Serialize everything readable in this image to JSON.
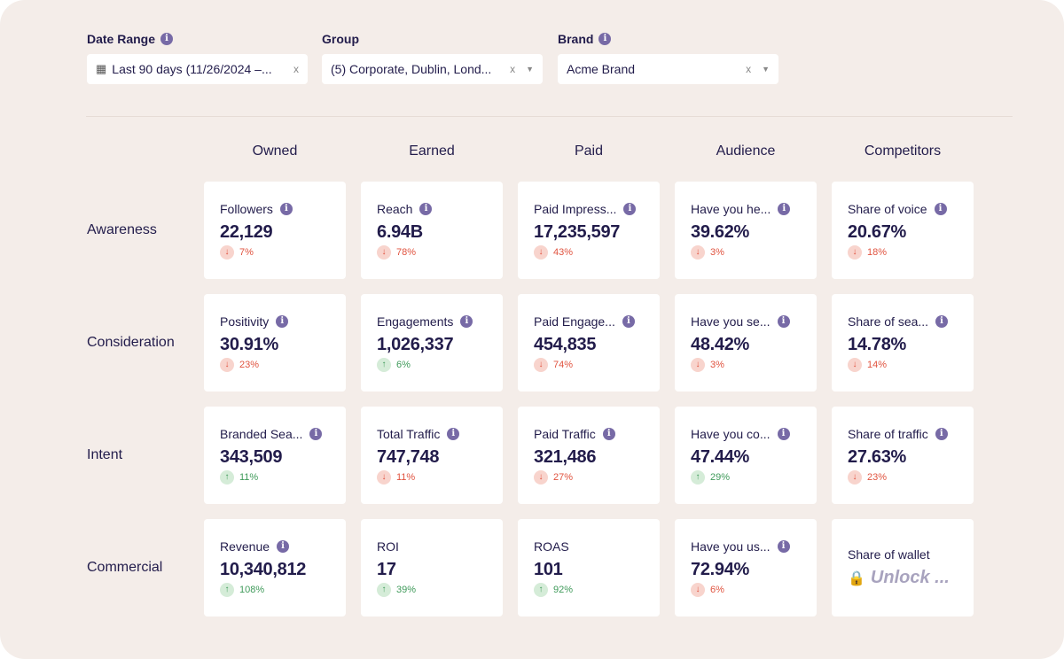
{
  "filters": [
    {
      "label": "Date Range",
      "info": true,
      "value": "Last 90 days (11/26/2024 –...",
      "icon": "calendar-icon",
      "clear": "x",
      "dropdown": false
    },
    {
      "label": "Group",
      "info": false,
      "value": "(5) Corporate, Dublin, Lond...",
      "clear": "x",
      "dropdown": true
    },
    {
      "label": "Brand",
      "info": true,
      "value": "Acme Brand",
      "clear": "x",
      "dropdown": true
    }
  ],
  "columns": [
    "Owned",
    "Earned",
    "Paid",
    "Audience",
    "Competitors"
  ],
  "rows": [
    {
      "label": "Awareness",
      "cards": [
        {
          "title": "Followers",
          "value": "22,129",
          "dir": "down",
          "delta": "7%"
        },
        {
          "title": "Reach",
          "value": "6.94B",
          "dir": "down",
          "delta": "78%"
        },
        {
          "title": "Paid Impress...",
          "value": "17,235,597",
          "dir": "down",
          "delta": "43%"
        },
        {
          "title": "Have you he...",
          "value": "39.62%",
          "dir": "down",
          "delta": "3%"
        },
        {
          "title": "Share of voice",
          "value": "20.67%",
          "dir": "down",
          "delta": "18%"
        }
      ]
    },
    {
      "label": "Consideration",
      "cards": [
        {
          "title": "Positivity",
          "value": "30.91%",
          "dir": "down",
          "delta": "23%"
        },
        {
          "title": "Engagements",
          "value": "1,026,337",
          "dir": "up",
          "delta": "6%"
        },
        {
          "title": "Paid Engage...",
          "value": "454,835",
          "dir": "down",
          "delta": "74%"
        },
        {
          "title": "Have you se...",
          "value": "48.42%",
          "dir": "down",
          "delta": "3%"
        },
        {
          "title": "Share of sea...",
          "value": "14.78%",
          "dir": "down",
          "delta": "14%"
        }
      ]
    },
    {
      "label": "Intent",
      "cards": [
        {
          "title": "Branded Sea...",
          "value": "343,509",
          "dir": "up",
          "delta": "11%"
        },
        {
          "title": "Total Traffic",
          "value": "747,748",
          "dir": "down",
          "delta": "11%"
        },
        {
          "title": "Paid Traffic",
          "value": "321,486",
          "dir": "down",
          "delta": "27%"
        },
        {
          "title": "Have you co...",
          "value": "47.44%",
          "dir": "up",
          "delta": "29%"
        },
        {
          "title": "Share of traffic",
          "value": "27.63%",
          "dir": "down",
          "delta": "23%"
        }
      ]
    },
    {
      "label": "Commercial",
      "cards": [
        {
          "title": "Revenue",
          "value": "10,340,812",
          "dir": "up",
          "delta": "108%"
        },
        {
          "title": "ROI",
          "value": "17",
          "dir": "up",
          "delta": "39%",
          "noinfo": true
        },
        {
          "title": "ROAS",
          "value": "101",
          "dir": "up",
          "delta": "92%",
          "noinfo": true
        },
        {
          "title": "Have you us...",
          "value": "72.94%",
          "dir": "down",
          "delta": "6%"
        },
        {
          "title": "Share of wallet",
          "locked": true,
          "lock_text": "Unlock ...",
          "noinfo": true
        }
      ]
    }
  ],
  "colors": {
    "text": "#221c4b",
    "info": "#776aa6",
    "down": "#e0533f",
    "up": "#3f9a5a",
    "background": "#f4ede9"
  }
}
